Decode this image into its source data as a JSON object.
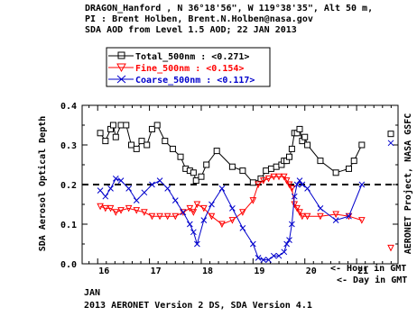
{
  "header": {
    "line1": "DRAGON_Hanford , N 36°18'56\", W 119°38'35\", Alt 50 m,",
    "line2": "PI : Brent Holben, Brent.N.Holben@nasa.gov",
    "line3": "SDA AOD from Level 1.5 AOD; 22 JAN 2013"
  },
  "footer": {
    "month": "JAN",
    "version": "2013 AERONET Version 2 DS, SDA Version 4.1",
    "hour_label": "<- Hour in GMT",
    "day_label": "<- Day in GMT"
  },
  "colors": {
    "total": "#000000",
    "fine": "#ff0000",
    "coarse": "#0000cc"
  },
  "chart_data": {
    "type": "line",
    "ylabel": "SDA Aerosol Optical Depth",
    "right_label": "AERONET Project, NASA GSFC",
    "xlim": [
      15.7,
      21.8
    ],
    "ylim": [
      0.0,
      0.4
    ],
    "x_ticks": [
      "16",
      "17",
      "18",
      "19",
      "20",
      "21"
    ],
    "y_ticks": [
      "0.0",
      "0.1",
      "0.2",
      "0.3",
      "0.4"
    ],
    "reference_line": 0.2,
    "legend": [
      {
        "name": "Total_500nm",
        "mean": "<0.271>"
      },
      {
        "name": "Fine_500nm",
        "mean": "<0.154>"
      },
      {
        "name": "Coarse_500nm",
        "mean": "<0.117>"
      }
    ],
    "series": [
      {
        "name": "Total_500nm",
        "marker": "square",
        "x": [
          16.05,
          16.15,
          16.25,
          16.3,
          16.35,
          16.45,
          16.55,
          16.65,
          16.75,
          16.85,
          16.95,
          17.05,
          17.15,
          17.3,
          17.45,
          17.6,
          17.7,
          17.78,
          17.85,
          17.9,
          18.0,
          18.1,
          18.3,
          18.6,
          18.8,
          19.0,
          19.15,
          19.25,
          19.35,
          19.45,
          19.55,
          19.6,
          19.65,
          19.7,
          19.75,
          19.8,
          19.85,
          19.9,
          19.95,
          20.0,
          20.05,
          20.3,
          20.6,
          20.85,
          20.95,
          21.1
        ],
        "values": [
          0.33,
          0.31,
          0.34,
          0.35,
          0.32,
          0.35,
          0.35,
          0.3,
          0.29,
          0.31,
          0.3,
          0.34,
          0.35,
          0.31,
          0.29,
          0.27,
          0.24,
          0.235,
          0.23,
          0.21,
          0.22,
          0.25,
          0.285,
          0.245,
          0.235,
          0.205,
          0.215,
          0.235,
          0.24,
          0.245,
          0.25,
          0.26,
          0.26,
          0.27,
          0.29,
          0.33,
          0.33,
          0.34,
          0.31,
          0.32,
          0.3,
          0.26,
          0.23,
          0.24,
          0.26,
          0.3
        ]
      },
      {
        "name": "Fine_500nm",
        "marker": "triangle-down",
        "x": [
          16.05,
          16.15,
          16.25,
          16.35,
          16.45,
          16.6,
          16.75,
          16.9,
          17.05,
          17.2,
          17.35,
          17.5,
          17.65,
          17.78,
          17.85,
          17.92,
          18.05,
          18.2,
          18.4,
          18.6,
          18.8,
          19.0,
          19.1,
          19.2,
          19.3,
          19.4,
          19.5,
          19.6,
          19.65,
          19.7,
          19.75,
          19.8,
          19.85,
          19.9,
          19.95,
          20.05,
          20.3,
          20.6,
          20.85,
          21.1
        ],
        "values": [
          0.145,
          0.14,
          0.14,
          0.13,
          0.135,
          0.14,
          0.135,
          0.13,
          0.12,
          0.12,
          0.12,
          0.12,
          0.13,
          0.14,
          0.13,
          0.15,
          0.14,
          0.12,
          0.1,
          0.11,
          0.13,
          0.16,
          0.2,
          0.21,
          0.215,
          0.22,
          0.22,
          0.22,
          0.21,
          0.2,
          0.19,
          0.15,
          0.14,
          0.13,
          0.12,
          0.12,
          0.12,
          0.125,
          0.12,
          0.11
        ]
      },
      {
        "name": "Coarse_500nm",
        "marker": "x",
        "x": [
          16.05,
          16.15,
          16.25,
          16.35,
          16.45,
          16.6,
          16.75,
          16.9,
          17.05,
          17.2,
          17.35,
          17.5,
          17.65,
          17.78,
          17.85,
          17.92,
          18.05,
          18.2,
          18.4,
          18.6,
          18.8,
          19.0,
          19.1,
          19.2,
          19.3,
          19.4,
          19.5,
          19.6,
          19.65,
          19.7,
          19.75,
          19.8,
          19.85,
          19.9,
          19.95,
          20.05,
          20.3,
          20.6,
          20.85,
          21.1
        ],
        "values": [
          0.185,
          0.17,
          0.19,
          0.215,
          0.21,
          0.19,
          0.16,
          0.18,
          0.2,
          0.21,
          0.19,
          0.16,
          0.13,
          0.1,
          0.08,
          0.05,
          0.11,
          0.15,
          0.19,
          0.14,
          0.09,
          0.05,
          0.015,
          0.01,
          0.01,
          0.02,
          0.02,
          0.03,
          0.05,
          0.06,
          0.1,
          0.17,
          0.2,
          0.21,
          0.2,
          0.19,
          0.14,
          0.11,
          0.12,
          0.2
        ]
      }
    ],
    "right_markers": [
      {
        "series": "Total_500nm",
        "value": 0.328
      },
      {
        "series": "Coarse_500nm",
        "value": 0.305
      },
      {
        "series": "Fine_500nm",
        "value": 0.04
      }
    ]
  }
}
